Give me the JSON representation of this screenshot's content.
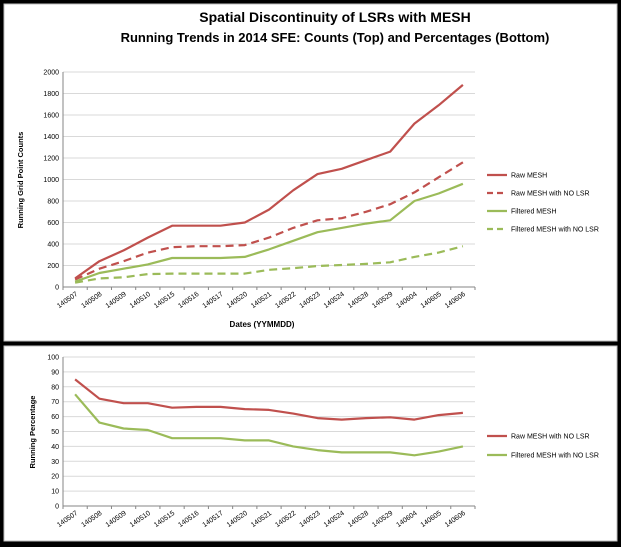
{
  "colors": {
    "raw_mesh": "#C0504D",
    "filtered_mesh": "#9BBB59",
    "grid": "#D9D9D9",
    "axis": "#868686",
    "background": "#FFFFFF",
    "outer_background": "#000000"
  },
  "chart_data": [
    {
      "type": "line",
      "title": "Spatial Discontinuity of LSRs with MESH",
      "subtitle": "Running Trends in 2014 SFE:  Counts (Top) and Percentages (Bottom)",
      "xlabel": "Dates (YYMMDD)",
      "ylabel": "Running Grid Point Counts",
      "ylim": [
        0,
        2000
      ],
      "yticks": [
        "0",
        "200",
        "400",
        "600",
        "800",
        "1000",
        "1200",
        "1400",
        "1600",
        "1800",
        "2000"
      ],
      "categories": [
        "140507",
        "140508",
        "140509",
        "140510",
        "140515",
        "140516",
        "140517",
        "140520",
        "140521",
        "140522",
        "140523",
        "140524",
        "140528",
        "140529",
        "140604",
        "140605",
        "140606"
      ],
      "grid": true,
      "legend_position": "right",
      "series": [
        {
          "name": "Raw MESH",
          "color": "#C0504D",
          "dashed": false,
          "values": [
            80,
            240,
            340,
            460,
            570,
            570,
            570,
            600,
            720,
            900,
            1050,
            1100,
            1180,
            1260,
            1520,
            1690,
            1880
          ]
        },
        {
          "name": "Raw MESH with NO LSR",
          "color": "#C0504D",
          "dashed": true,
          "values": [
            70,
            170,
            240,
            320,
            370,
            380,
            380,
            390,
            460,
            550,
            620,
            640,
            700,
            770,
            880,
            1020,
            1160
          ]
        },
        {
          "name": "Filtered MESH",
          "color": "#9BBB59",
          "dashed": false,
          "values": [
            50,
            130,
            170,
            210,
            270,
            270,
            270,
            280,
            350,
            430,
            510,
            550,
            590,
            620,
            800,
            870,
            960
          ]
        },
        {
          "name": "Filtered MESH with NO LSR",
          "color": "#9BBB59",
          "dashed": true,
          "values": [
            40,
            80,
            90,
            120,
            125,
            125,
            125,
            125,
            160,
            175,
            195,
            205,
            215,
            230,
            280,
            320,
            380
          ]
        }
      ]
    },
    {
      "type": "line",
      "title": "",
      "xlabel": "",
      "ylabel": "Running Percentage",
      "ylim": [
        0,
        100
      ],
      "yticks": [
        "0",
        "10",
        "20",
        "30",
        "40",
        "50",
        "60",
        "70",
        "80",
        "90",
        "100"
      ],
      "categories": [
        "140507",
        "140508",
        "140509",
        "140510",
        "140515",
        "140516",
        "140517",
        "140520",
        "140521",
        "140522",
        "140523",
        "140524",
        "140528",
        "140529",
        "140604",
        "140605",
        "140606"
      ],
      "grid": true,
      "legend_position": "right",
      "series": [
        {
          "name": "Raw MESH with NO LSR",
          "color": "#C0504D",
          "dashed": false,
          "values": [
            85,
            72,
            69,
            69,
            66,
            66.5,
            66.5,
            65,
            64.5,
            62,
            59,
            58,
            59,
            59.5,
            58,
            61,
            62.5
          ]
        },
        {
          "name": "Filtered MESH with NO LSR",
          "color": "#9BBB59",
          "dashed": false,
          "values": [
            75,
            56,
            52,
            51,
            45.5,
            45.5,
            45.5,
            44,
            44,
            40,
            37.5,
            36,
            36,
            36,
            34,
            36.5,
            40
          ]
        }
      ]
    }
  ]
}
